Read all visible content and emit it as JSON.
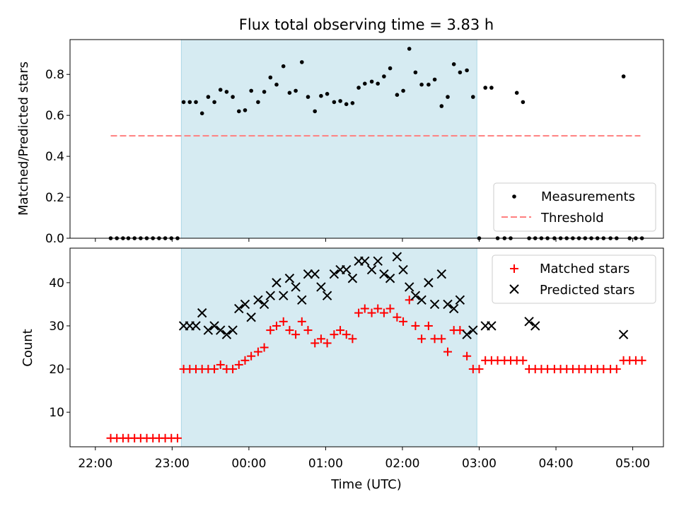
{
  "chart_data": [
    {
      "type": "scatter",
      "title": "Flux total observing time = 3.83 h",
      "ylabel": "Matched/Predicted stars",
      "xlabel": "",
      "x_unit": "hours since 22:00 UTC (axis shown as clock time)",
      "xlim": [
        -0.33,
        7.4
      ],
      "ylim": [
        0,
        0.97
      ],
      "yticks": [
        "0.0",
        "0.2",
        "0.4",
        "0.6",
        "0.8"
      ],
      "ytick_values": [
        0.0,
        0.2,
        0.4,
        0.6,
        0.8
      ],
      "shaded_interval": [
        1.12,
        4.97
      ],
      "shade_color": "#add8e6",
      "legend_position": "lower-right",
      "legend": [
        "Measurements",
        "Threshold"
      ],
      "threshold": {
        "name": "Threshold",
        "y": 0.5,
        "x_range": [
          0.2,
          7.1
        ],
        "color": "#ff7f7f"
      },
      "measurements": {
        "name": "Measurements",
        "color": "#000000",
        "x": [
          0.2,
          0.28,
          0.36,
          0.43,
          0.51,
          0.59,
          0.67,
          0.75,
          0.83,
          0.91,
          0.99,
          1.07,
          1.15,
          1.23,
          1.31,
          1.39,
          1.47,
          1.55,
          1.63,
          1.71,
          1.79,
          1.87,
          1.95,
          2.03,
          2.12,
          2.2,
          2.28,
          2.36,
          2.45,
          2.53,
          2.61,
          2.69,
          2.77,
          2.86,
          2.94,
          3.02,
          3.11,
          3.19,
          3.27,
          3.35,
          3.43,
          3.51,
          3.6,
          3.68,
          3.76,
          3.84,
          3.93,
          4.01,
          4.09,
          4.17,
          4.25,
          4.34,
          4.42,
          4.51,
          4.59,
          4.67,
          4.75,
          4.84,
          4.92,
          5.0,
          5.08,
          5.16,
          5.24,
          5.33,
          5.41,
          5.49,
          5.57,
          5.65,
          5.73,
          5.81,
          5.89,
          5.98,
          6.06,
          6.14,
          6.22,
          6.3,
          6.38,
          6.46,
          6.54,
          6.62,
          6.71,
          6.79,
          6.88,
          6.96,
          7.04,
          7.12
        ],
        "y": [
          0.0,
          0.0,
          0.0,
          0.0,
          0.0,
          0.0,
          0.0,
          0.0,
          0.0,
          0.0,
          0.0,
          0.0,
          0.665,
          0.665,
          0.665,
          0.61,
          0.69,
          0.665,
          0.725,
          0.715,
          0.69,
          0.62,
          0.625,
          0.72,
          0.665,
          0.715,
          0.785,
          0.75,
          0.84,
          0.71,
          0.72,
          0.86,
          0.69,
          0.62,
          0.695,
          0.705,
          0.665,
          0.67,
          0.655,
          0.66,
          0.735,
          0.755,
          0.765,
          0.755,
          0.79,
          0.83,
          0.7,
          0.72,
          0.925,
          0.81,
          0.75,
          0.75,
          0.775,
          0.645,
          0.69,
          0.85,
          0.81,
          0.82,
          0.69,
          0.0,
          0.735,
          0.735,
          0.0,
          0.0,
          0.0,
          0.71,
          0.665,
          0.0,
          0.0,
          0.0,
          0.0,
          0.0,
          0.0,
          0.0,
          0.0,
          0.0,
          0.0,
          0.0,
          0.0,
          0.0,
          0.0,
          0.0,
          0.79,
          0.0,
          0.0,
          0.0
        ]
      }
    },
    {
      "type": "scatter",
      "title": "",
      "ylabel": "Count",
      "xlabel": "Time (UTC)",
      "x_unit": "hours since 22:00 UTC (axis shown as clock time)",
      "xlim": [
        -0.33,
        7.4
      ],
      "ylim": [
        2,
        48
      ],
      "yticks": [
        "10",
        "20",
        "30",
        "40"
      ],
      "ytick_values": [
        10,
        20,
        30,
        40
      ],
      "xticks": [
        "22:00",
        "23:00",
        "00:00",
        "01:00",
        "02:00",
        "03:00",
        "04:00",
        "05:00"
      ],
      "xtick_values": [
        0,
        1,
        2,
        3,
        4,
        5,
        6,
        7
      ],
      "shaded_interval": [
        1.12,
        4.97
      ],
      "shade_color": "#add8e6",
      "legend_position": "upper-right",
      "legend": [
        "Matched stars",
        "Predicted stars"
      ],
      "series": [
        {
          "name": "Matched stars",
          "marker": "+",
          "color": "#ff0000",
          "x": [
            0.2,
            0.28,
            0.36,
            0.43,
            0.51,
            0.59,
            0.67,
            0.75,
            0.83,
            0.91,
            0.99,
            1.07,
            1.15,
            1.23,
            1.31,
            1.39,
            1.47,
            1.55,
            1.63,
            1.71,
            1.79,
            1.87,
            1.95,
            2.03,
            2.12,
            2.2,
            2.28,
            2.36,
            2.45,
            2.53,
            2.61,
            2.69,
            2.77,
            2.86,
            2.94,
            3.02,
            3.11,
            3.19,
            3.27,
            3.35,
            3.43,
            3.51,
            3.6,
            3.68,
            3.76,
            3.84,
            3.93,
            4.01,
            4.09,
            4.17,
            4.25,
            4.34,
            4.42,
            4.51,
            4.59,
            4.67,
            4.75,
            4.84,
            4.92,
            5.0,
            5.08,
            5.16,
            5.24,
            5.33,
            5.41,
            5.49,
            5.57,
            5.65,
            5.73,
            5.81,
            5.89,
            5.98,
            6.06,
            6.14,
            6.22,
            6.3,
            6.38,
            6.46,
            6.54,
            6.62,
            6.71,
            6.79,
            6.88,
            6.96,
            7.04,
            7.12
          ],
          "y": [
            4,
            4,
            4,
            4,
            4,
            4,
            4,
            4,
            4,
            4,
            4,
            4,
            20,
            20,
            20,
            20,
            20,
            20,
            21,
            20,
            20,
            21,
            22,
            23,
            24,
            25,
            29,
            30,
            31,
            29,
            28,
            31,
            29,
            26,
            27,
            26,
            28,
            29,
            28,
            27,
            33,
            34,
            33,
            34,
            33,
            34,
            32,
            31,
            36,
            30,
            27,
            30,
            27,
            27,
            24,
            29,
            29,
            23,
            20,
            20,
            22,
            22,
            22,
            22,
            22,
            22,
            22,
            20,
            20,
            20,
            20,
            20,
            20,
            20,
            20,
            20,
            20,
            20,
            20,
            20,
            20,
            20,
            22,
            22,
            22,
            22
          ]
        },
        {
          "name": "Predicted stars",
          "marker": "x",
          "color": "#000000",
          "x": [
            1.15,
            1.23,
            1.31,
            1.39,
            1.47,
            1.55,
            1.63,
            1.71,
            1.79,
            1.87,
            1.95,
            2.03,
            2.12,
            2.2,
            2.28,
            2.36,
            2.45,
            2.53,
            2.61,
            2.69,
            2.77,
            2.86,
            2.94,
            3.02,
            3.11,
            3.19,
            3.27,
            3.35,
            3.43,
            3.51,
            3.6,
            3.68,
            3.76,
            3.84,
            3.93,
            4.01,
            4.09,
            4.17,
            4.25,
            4.34,
            4.42,
            4.51,
            4.59,
            4.67,
            4.75,
            4.84,
            4.92,
            5.08,
            5.16,
            5.65,
            5.73,
            6.88
          ],
          "y": [
            30,
            30,
            30,
            33,
            29,
            30,
            29,
            28,
            29,
            34,
            35,
            32,
            36,
            35,
            37,
            40,
            37,
            41,
            39,
            36,
            42,
            42,
            39,
            37,
            42,
            43,
            43,
            41,
            45,
            45,
            43,
            45,
            42,
            41,
            46,
            43,
            39,
            37,
            36,
            40,
            35,
            42,
            35,
            34,
            36,
            28,
            29,
            30,
            30,
            31,
            30,
            28
          ]
        }
      ]
    }
  ]
}
